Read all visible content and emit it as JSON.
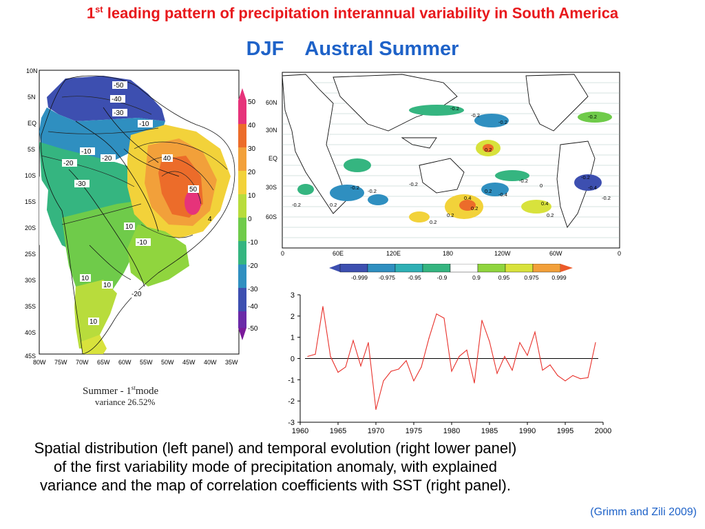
{
  "title": {
    "prefix": "1",
    "sup": "st",
    "rest": " leading pattern of precipitation interannual variability in South America"
  },
  "subtitle": {
    "season": "DJF",
    "name": "Austral Summer"
  },
  "left_map": {
    "lat_labels": [
      "10N",
      "5N",
      "EQ",
      "5S",
      "10S",
      "15S",
      "20S",
      "25S",
      "30S",
      "35S",
      "40S",
      "45S"
    ],
    "lon_labels": [
      "80W",
      "75W",
      "70W",
      "65W",
      "60W",
      "55W",
      "50W",
      "45W",
      "40W",
      "35W"
    ],
    "contour_labels": [
      "-50",
      "-40",
      "-30",
      "-10",
      "-10",
      "-20",
      "-20",
      "-30",
      "40",
      "50",
      "4",
      "10",
      "-10",
      "10",
      "10",
      "-20",
      "10"
    ],
    "colorbar_labels": [
      "50",
      "40",
      "30",
      "20",
      "10",
      "0",
      "-10",
      "-20",
      "-30",
      "-40",
      "-50"
    ],
    "caption_line1": "Summer - 1",
    "caption_sup": "st",
    "caption_mode": "mode",
    "caption_line2": "variance 26.52%"
  },
  "global_map": {
    "lat_labels": [
      "60N",
      "30N",
      "EQ",
      "30S",
      "60S"
    ],
    "lon_labels": [
      "0",
      "60E",
      "120E",
      "180",
      "120W",
      "60W",
      "0"
    ],
    "contour_labels": [
      "-0.2",
      "-0.2",
      "-0.2",
      "-0.2",
      "-0.2",
      "-0.2",
      "-0.2",
      "0.2",
      "-0.2",
      "-0.4",
      "0.2",
      "0.4",
      "0.2",
      "-0.4",
      "-0.2",
      "0.4",
      "0.2",
      "0",
      "-0.2",
      "0.2",
      "-0.2",
      "0.2",
      "0.2"
    ],
    "colorbar_labels": [
      "-0.999",
      "-0.975",
      "-0.95",
      "-0.9",
      "0.9",
      "0.95",
      "0.975",
      "0.999"
    ]
  },
  "chart_data": {
    "type": "line",
    "title": "",
    "xlabel": "",
    "ylabel": "",
    "xlim": [
      1960,
      2000
    ],
    "ylim": [
      -3,
      3
    ],
    "x_ticks": [
      "1960",
      "1965",
      "1970",
      "1975",
      "1980",
      "1985",
      "1990",
      "1995",
      "2000"
    ],
    "y_ticks": [
      "3",
      "2",
      "1",
      "0",
      "-1",
      "-2",
      "-3"
    ],
    "color": "#e8302a",
    "x": [
      1961,
      1962,
      1963,
      1964,
      1965,
      1966,
      1967,
      1968,
      1969,
      1970,
      1971,
      1972,
      1973,
      1974,
      1975,
      1976,
      1977,
      1978,
      1979,
      1980,
      1981,
      1982,
      1983,
      1984,
      1985,
      1986,
      1987,
      1988,
      1989,
      1990,
      1991,
      1992,
      1993,
      1994,
      1995,
      1996,
      1997,
      1998,
      1999
    ],
    "y": [
      0.1,
      0.2,
      2.45,
      0.1,
      -0.65,
      -0.4,
      0.85,
      -0.35,
      0.75,
      -2.4,
      -1.05,
      -0.6,
      -0.5,
      -0.1,
      -1.05,
      -0.4,
      0.95,
      2.1,
      1.9,
      -0.6,
      0.1,
      0.4,
      -1.15,
      1.8,
      0.8,
      -0.7,
      0.1,
      -0.55,
      0.75,
      0.15,
      1.25,
      -0.55,
      -0.3,
      -0.8,
      -1.05,
      -0.8,
      -0.95,
      -0.9,
      0.75
    ],
    "zero_line": true
  },
  "caption": "Spatial distribution (left panel) and temporal evolution (right lower panel) of the first variability mode of precipitation anomaly, with explained variance and the map of correlation coefficients with SST (right panel).",
  "citation": "(Grimm and Zili 2009)",
  "colors": {
    "title": "#e8181c",
    "subtitle": "#1e62c8",
    "citation": "#1e62c8",
    "series": "#e8302a"
  }
}
